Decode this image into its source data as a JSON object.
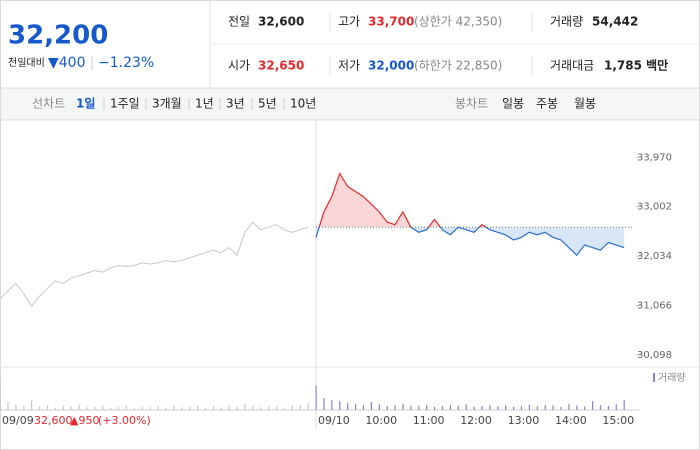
{
  "header": {
    "price": "32,200",
    "change_label": "전일대비",
    "change": "▼400",
    "change_rate": "−1.23%",
    "stats": [
      {
        "label": "전일",
        "value": "32,600"
      },
      {
        "label": "고가",
        "value": "33,700",
        "extra": "(상한가 42,350)"
      },
      {
        "label": "거래량",
        "value": "54,442"
      },
      {
        "label": "시가",
        "value": "32,650"
      },
      {
        "label": "저가",
        "value": "32,000",
        "extra": "(하한가 22,850)"
      },
      {
        "label": "거래대금",
        "value": "1,785 백만"
      }
    ]
  },
  "tabs": {
    "line_label": "선차트",
    "periods": [
      "1일",
      "1주일",
      "3개월",
      "1년",
      "3년",
      "5년",
      "10년"
    ],
    "candle_label": "봉차트",
    "candles": [
      "일봉",
      "주봉",
      "월봉"
    ]
  },
  "prev_day_summary": {
    "close": "32,600",
    "change": "▲950",
    "rate": "(+3.00%)"
  },
  "chart_data": {
    "type": "line",
    "categories": [
      "09/09",
      null,
      null,
      null,
      null,
      null,
      null,
      null,
      null,
      null,
      null,
      null,
      null,
      null,
      null,
      null,
      null,
      null,
      null,
      null,
      null,
      null,
      null,
      null,
      null,
      null,
      null,
      null,
      null,
      null,
      null,
      null,
      null,
      null,
      null,
      null,
      null,
      null,
      null,
      null,
      "09/10",
      null,
      null,
      null,
      null,
      null,
      "10:00",
      null,
      null,
      null,
      null,
      null,
      "11:00",
      null,
      null,
      null,
      null,
      null,
      "12:00",
      null,
      null,
      null,
      null,
      null,
      "13:00",
      null,
      null,
      null,
      null,
      null,
      "14:00",
      null,
      null,
      null,
      null,
      null,
      "15:00",
      null,
      null,
      null
    ],
    "series": [
      {
        "name": "09/09",
        "color": "#c8c8c8",
        "values": [
          31200,
          31350,
          31500,
          31300,
          31050,
          31250,
          31400,
          31550,
          31500,
          31600,
          31650,
          31700,
          31750,
          31720,
          31800,
          31850,
          31830,
          31850,
          31900,
          31880,
          31900,
          31950,
          31920,
          31950,
          32000,
          32050,
          32100,
          32150,
          32100,
          32200,
          32050,
          32500,
          32700,
          32550,
          32600,
          32650,
          32550,
          32500,
          32550,
          32600,
          null,
          null,
          null,
          null,
          null,
          null,
          null,
          null,
          null,
          null,
          null,
          null,
          null,
          null,
          null,
          null,
          null,
          null,
          null,
          null,
          null,
          null,
          null,
          null,
          null,
          null,
          null,
          null,
          null,
          null,
          null,
          null,
          null,
          null,
          null,
          null,
          null,
          null,
          null,
          null
        ]
      },
      {
        "name": "09/10",
        "up_color": "#e8282a",
        "down_color": "#2a6fd0",
        "values": [
          null,
          null,
          null,
          null,
          null,
          null,
          null,
          null,
          null,
          null,
          null,
          null,
          null,
          null,
          null,
          null,
          null,
          null,
          null,
          null,
          null,
          null,
          null,
          null,
          null,
          null,
          null,
          null,
          null,
          null,
          null,
          null,
          null,
          null,
          null,
          null,
          null,
          null,
          null,
          null,
          32400,
          32900,
          33200,
          33650,
          33400,
          33300,
          33200,
          33050,
          32900,
          32700,
          32650,
          32900,
          32600,
          32500,
          32550,
          32750,
          32550,
          32450,
          32600,
          32550,
          32500,
          32650,
          32550,
          32500,
          32450,
          32350,
          32400,
          32500,
          32450,
          32500,
          32400,
          32350,
          32200,
          32050,
          32250,
          32200,
          32150,
          32300,
          32250,
          32200
        ]
      }
    ],
    "baseline": 32600,
    "volume": {
      "name": "거래량",
      "color": "#8e7fcf",
      "vlim": [
        0,
        100
      ],
      "values": [
        70,
        20,
        15,
        10,
        25,
        8,
        12,
        6,
        10,
        9,
        14,
        7,
        8,
        12,
        6,
        9,
        10,
        5,
        8,
        7,
        9,
        6,
        11,
        7,
        8,
        10,
        6,
        9,
        7,
        12,
        8,
        15,
        10,
        7,
        9,
        8,
        6,
        10,
        12,
        18,
        60,
        30,
        25,
        22,
        18,
        15,
        12,
        20,
        14,
        10,
        12,
        16,
        9,
        11,
        13,
        8,
        10,
        12,
        9,
        14,
        8,
        10,
        12,
        9,
        11,
        8,
        10,
        13,
        9,
        12,
        10,
        8,
        15,
        11,
        9,
        22,
        12,
        10,
        14,
        25
      ]
    },
    "ylim": [
      29900,
      34700
    ],
    "yticks": [
      {
        "value": 30098,
        "label": "30,098"
      },
      {
        "value": 31066,
        "label": "31,066"
      },
      {
        "value": 32034,
        "label": "32,034"
      },
      {
        "value": 33002,
        "label": "33,002"
      },
      {
        "value": 33970,
        "label": "33,970"
      }
    ],
    "grid": false
  }
}
